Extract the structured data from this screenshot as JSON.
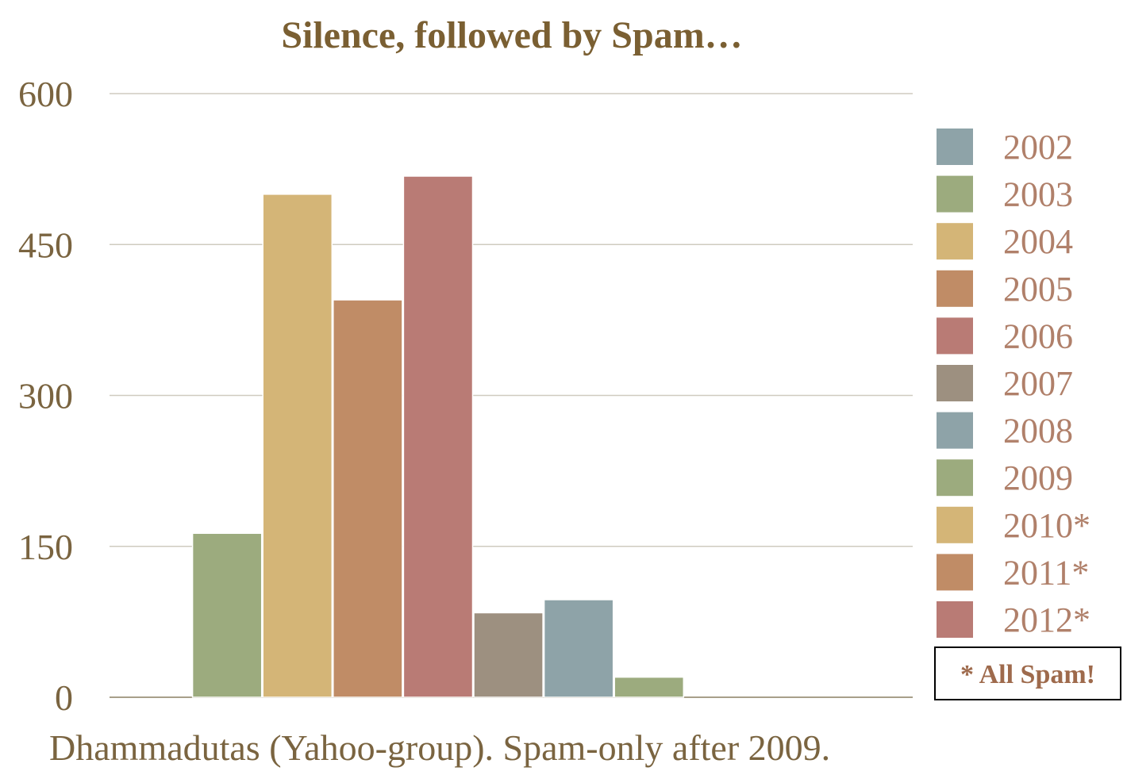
{
  "chart_data": {
    "type": "bar",
    "title": "Silence, followed by Spam…",
    "caption": "Dhammadutas (Yahoo-group). Spam-only after 2009.",
    "legend_note": "* All Spam!",
    "ylim": [
      0,
      600
    ],
    "yticks": [
      0,
      150,
      300,
      450,
      600
    ],
    "legend_position": "right",
    "grid": true,
    "series": [
      {
        "name": "2002",
        "value": 0,
        "color": "#8ea3a8"
      },
      {
        "name": "2003",
        "value": 163,
        "color": "#9cab7e"
      },
      {
        "name": "2004",
        "value": 500,
        "color": "#d4b577"
      },
      {
        "name": "2005",
        "value": 395,
        "color": "#c08c66"
      },
      {
        "name": "2006",
        "value": 518,
        "color": "#b97b75"
      },
      {
        "name": "2007",
        "value": 84,
        "color": "#9d9080"
      },
      {
        "name": "2008",
        "value": 97,
        "color": "#8ea3a8"
      },
      {
        "name": "2009",
        "value": 20,
        "color": "#9cab7e"
      },
      {
        "name": "2010*",
        "value": 0,
        "color": "#d4b577"
      },
      {
        "name": "2011*",
        "value": 0,
        "color": "#c08c66"
      },
      {
        "name": "2012*",
        "value": 0,
        "color": "#b97b75"
      }
    ],
    "colors": {
      "title": "#7a5f32",
      "axis_text": "#7a6440",
      "legend_text": "#b0806a",
      "legend_note_text": "#9e6a4c",
      "gridline": "#cfcbbf",
      "baseline": "#a89f8a"
    }
  }
}
